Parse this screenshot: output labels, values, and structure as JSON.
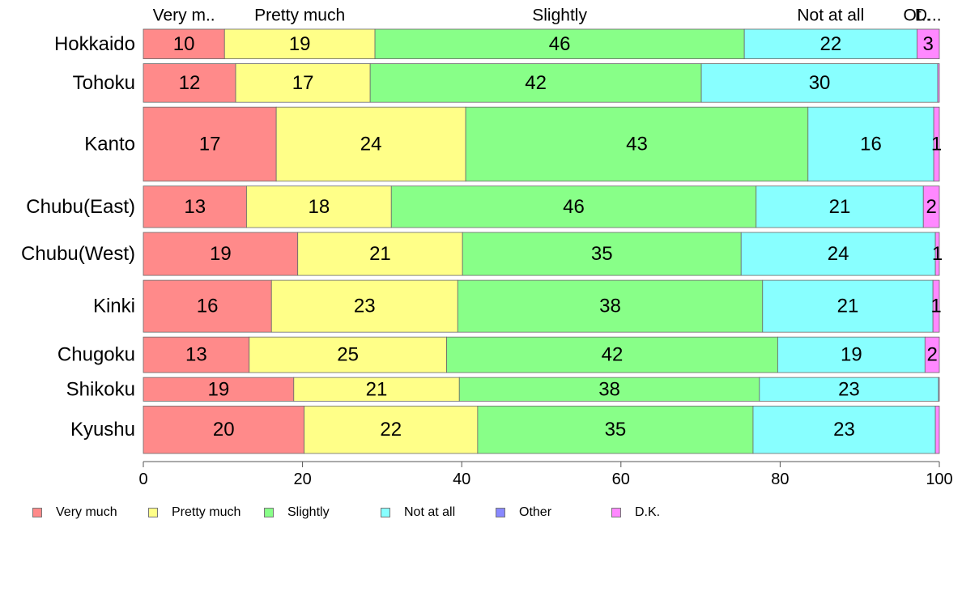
{
  "chart_data": {
    "type": "bar",
    "orientation": "horizontal",
    "stacked": true,
    "categories": [
      "Hokkaido",
      "Tohoku",
      "Kanto",
      "Chubu(East)",
      "Chubu(West)",
      "Kinki",
      "Chugoku",
      "Shikoku",
      "Kyushu"
    ],
    "series": [
      {
        "name": "Very much",
        "color": "#ff8a8a",
        "values": [
          10.2,
          11.6,
          16.7,
          12.9,
          19.4,
          16.1,
          13.3,
          18.9,
          20.2
        ],
        "labels": [
          "10",
          "12",
          "17",
          "13",
          "19",
          "16",
          "13",
          "19",
          "20"
        ]
      },
      {
        "name": "Pretty much",
        "color": "#ffff88",
        "values": [
          18.9,
          16.9,
          23.8,
          18.1,
          20.7,
          23.4,
          24.8,
          20.8,
          21.8
        ],
        "labels": [
          "19",
          "17",
          "24",
          "18",
          "21",
          "23",
          "25",
          "21",
          "22"
        ]
      },
      {
        "name": "Slightly",
        "color": "#88ff88",
        "values": [
          46.4,
          41.6,
          43.0,
          45.6,
          35.0,
          38.3,
          41.6,
          37.7,
          34.6
        ],
        "labels": [
          "46",
          "42",
          "43",
          "46",
          "35",
          "38",
          "42",
          "38",
          "35"
        ]
      },
      {
        "name": "Not at all",
        "color": "#88ffff",
        "values": [
          21.7,
          29.7,
          15.8,
          20.9,
          24.4,
          21.4,
          18.5,
          22.5,
          22.9
        ],
        "labels": [
          "22",
          "30",
          "16",
          "21",
          "24",
          "21",
          "19",
          "23",
          "23"
        ]
      },
      {
        "name": "Other",
        "color": "#8888ff",
        "values": [
          0,
          0,
          0,
          0,
          0,
          0,
          0,
          0,
          0
        ],
        "labels": [
          "",
          "",
          "",
          "",
          "",
          "",
          "",
          "",
          ""
        ]
      },
      {
        "name": "D.K.",
        "color": "#ff88ff",
        "values": [
          2.8,
          0.2,
          0.7,
          2.0,
          0.5,
          0.8,
          1.8,
          0.1,
          0.5
        ],
        "labels": [
          "3",
          "",
          "1",
          "2",
          "1",
          "1",
          "2",
          "",
          ""
        ]
      }
    ],
    "row_weights": [
      1.0,
      1.3,
      2.5,
      1.4,
      1.45,
      1.75,
      1.2,
      0.8,
      1.6
    ],
    "top_labels": [
      "Very m..",
      "Pretty much",
      "Slightly",
      "Not at all",
      "Ot..",
      "D..."
    ],
    "xticks": [
      0,
      20,
      40,
      60,
      80,
      100
    ],
    "xlim": [
      0,
      100
    ],
    "xlabel": "",
    "ylabel": "",
    "title": "",
    "grid": false,
    "legend_position": "bottom"
  }
}
